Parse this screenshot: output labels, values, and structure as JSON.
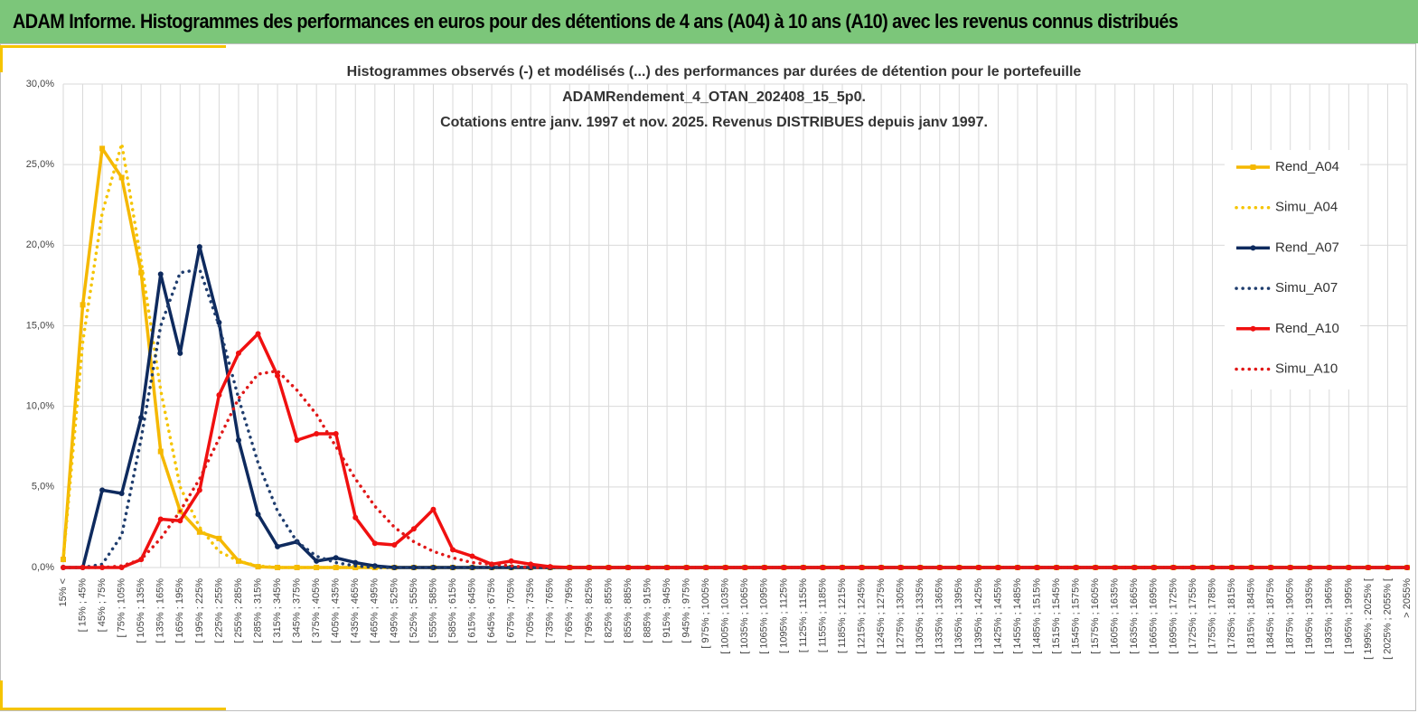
{
  "header": {
    "title": "ADAM Informe. Histogrammes des performances en euros pour des détentions de 4 ans (A04) à 10 ans (A10) avec les revenus connus distribués"
  },
  "chart_data": {
    "type": "line",
    "title": [
      "Histogrammes observés (-) et modélisés (...) des performances par durées de détention pour le portefeuille",
      "ADAMRendement_4_OTAN_202408_15_5p0.",
      "Cotations entre janv. 1997 et nov. 2025. Revenus DISTRIBUES depuis janv 1997."
    ],
    "categories": [
      "15% <",
      "[ 15% ; 45%",
      "[ 45% ; 75%",
      "[ 75% ; 105%",
      "[ 105% ; 135%",
      "[ 135% ; 165%",
      "[ 165% ; 195%",
      "[ 195% ; 225%",
      "[ 225% ; 255%",
      "[ 255% ; 285%",
      "[ 285% ; 315%",
      "[ 315% ; 345%",
      "[ 345% ; 375%",
      "[ 375% ; 405%",
      "[ 405% ; 435%",
      "[ 435% ; 465%",
      "[ 465% ; 495%",
      "[ 495% ; 525%",
      "[ 525% ; 555%",
      "[ 555% ; 585%",
      "[ 585% ; 615%",
      "[ 615% ; 645%",
      "[ 645% ; 675%",
      "[ 675% ; 705%",
      "[ 705% ; 735%",
      "[ 735% ; 765%",
      "[ 765% ; 795%",
      "[ 795% ; 825%",
      "[ 825% ; 855%",
      "[ 855% ; 885%",
      "[ 885% ; 915%",
      "[ 915% ; 945%",
      "[ 945% ; 975%",
      "[ 975% ; 1005%",
      "[ 1005% ; 1035%",
      "[ 1035% ; 1065%",
      "[ 1065% ; 1095%",
      "[ 1095% ; 1125%",
      "[ 1125% ; 1155%",
      "[ 1155% ; 1185%",
      "[ 1185% ; 1215%",
      "[ 1215% ; 1245%",
      "[ 1245% ; 1275%",
      "[ 1275% ; 1305%",
      "[ 1305% ; 1335%",
      "[ 1335% ; 1365%",
      "[ 1365% ; 1395%",
      "[ 1395% ; 1425%",
      "[ 1425% ; 1455%",
      "[ 1455% ; 1485%",
      "[ 1485% ; 1515%",
      "[ 1515% ; 1545%",
      "[ 1545% ; 1575%",
      "[ 1575% ; 1605%",
      "[ 1605% ; 1635%",
      "[ 1635% ; 1665%",
      "[ 1665% ; 1695%",
      "[ 1695% ; 1725%",
      "[ 1725% ; 1755%",
      "[ 1755% ; 1785%",
      "[ 1785% ; 1815%",
      "[ 1815% ; 1845%",
      "[ 1845% ; 1875%",
      "[ 1875% ; 1905%",
      "[ 1905% ; 1935%",
      "[ 1935% ; 1965%",
      "[ 1965% ; 1995%",
      "[ 1995% ; 2025% [",
      "[ 2025% ; 2055% [",
      "> 2055%"
    ],
    "series": [
      {
        "name": "Rend_A04",
        "color": "#f5b800",
        "dash": false,
        "marker": "square",
        "values": [
          0.5,
          16.3,
          26.0,
          24.2,
          18.3,
          7.2,
          3.5,
          2.2,
          1.8,
          0.4,
          0.05,
          0,
          0,
          0,
          0,
          0,
          0,
          0,
          0,
          0,
          0,
          0,
          0,
          0,
          0,
          0,
          0,
          0,
          0,
          0,
          0,
          0,
          0,
          0,
          0,
          0,
          0,
          0,
          0,
          0,
          0,
          0,
          0,
          0,
          0,
          0,
          0,
          0,
          0,
          0,
          0,
          0,
          0,
          0,
          0,
          0,
          0,
          0,
          0,
          0,
          0,
          0,
          0,
          0,
          0,
          0,
          0,
          0,
          0,
          0
        ]
      },
      {
        "name": "Simu_A04",
        "color": "#f5c400",
        "dash": true,
        "marker": "none",
        "values": [
          0.5,
          14,
          22,
          26.3,
          19,
          11,
          5,
          2.5,
          1.0,
          0.4,
          0.1,
          0,
          0,
          0,
          0,
          0,
          0,
          0,
          0,
          0,
          0,
          0,
          0,
          0,
          0,
          0,
          0,
          0,
          0,
          0,
          0,
          0,
          0,
          0,
          0,
          0,
          0,
          0,
          0,
          0,
          0,
          0,
          0,
          0,
          0,
          0,
          0,
          0,
          0,
          0,
          0,
          0,
          0,
          0,
          0,
          0,
          0,
          0,
          0,
          0,
          0,
          0,
          0,
          0,
          0,
          0,
          0,
          0,
          0,
          0
        ]
      },
      {
        "name": "Rend_A07",
        "color": "#0e2a5e",
        "dash": false,
        "marker": "circle",
        "values": [
          0,
          0,
          4.8,
          4.6,
          9.3,
          18.2,
          13.3,
          19.9,
          15.2,
          7.9,
          3.3,
          1.3,
          1.6,
          0.4,
          0.6,
          0.3,
          0.1,
          0,
          0,
          0,
          0,
          0,
          0,
          0,
          0,
          0,
          0,
          0,
          0,
          0,
          0,
          0,
          0,
          0,
          0,
          0,
          0,
          0,
          0,
          0,
          0,
          0,
          0,
          0,
          0,
          0,
          0,
          0,
          0,
          0,
          0,
          0,
          0,
          0,
          0,
          0,
          0,
          0,
          0,
          0,
          0,
          0,
          0,
          0,
          0,
          0,
          0,
          0,
          0,
          0
        ]
      },
      {
        "name": "Simu_A07",
        "color": "#1f3d6e",
        "dash": true,
        "marker": "none",
        "values": [
          0,
          0,
          0.2,
          2.0,
          8.0,
          15,
          18.3,
          18.5,
          15,
          10.5,
          6.5,
          3.5,
          1.6,
          0.7,
          0.3,
          0.1,
          0,
          0,
          0,
          0,
          0,
          0,
          0,
          0,
          0,
          0,
          0,
          0,
          0,
          0,
          0,
          0,
          0,
          0,
          0,
          0,
          0,
          0,
          0,
          0,
          0,
          0,
          0,
          0,
          0,
          0,
          0,
          0,
          0,
          0,
          0,
          0,
          0,
          0,
          0,
          0,
          0,
          0,
          0,
          0,
          0,
          0,
          0,
          0,
          0,
          0,
          0,
          0,
          0,
          0
        ]
      },
      {
        "name": "Rend_A10",
        "color": "#f01010",
        "dash": false,
        "marker": "circle",
        "values": [
          0,
          0,
          0,
          0,
          0.5,
          3.0,
          2.9,
          4.8,
          10.7,
          13.3,
          14.5,
          11.9,
          7.9,
          8.3,
          8.3,
          3.1,
          1.5,
          1.4,
          2.4,
          3.6,
          1.1,
          0.7,
          0.2,
          0.4,
          0.2,
          0.05,
          0,
          0,
          0,
          0,
          0,
          0,
          0,
          0,
          0,
          0,
          0,
          0,
          0,
          0,
          0,
          0,
          0,
          0,
          0,
          0,
          0,
          0,
          0,
          0,
          0,
          0,
          0,
          0,
          0,
          0,
          0,
          0,
          0,
          0,
          0,
          0,
          0,
          0,
          0,
          0,
          0,
          0,
          0,
          0
        ]
      },
      {
        "name": "Simu_A10",
        "color": "#e01818",
        "dash": true,
        "marker": "none",
        "values": [
          0,
          0,
          0,
          0.1,
          0.5,
          1.8,
          3.5,
          5.5,
          8.0,
          10.5,
          12.0,
          12.2,
          11.0,
          9.5,
          7.5,
          5.5,
          3.8,
          2.5,
          1.6,
          1.0,
          0.6,
          0.3,
          0.2,
          0.1,
          0,
          0,
          0,
          0,
          0,
          0,
          0,
          0,
          0,
          0,
          0,
          0,
          0,
          0,
          0,
          0,
          0,
          0,
          0,
          0,
          0,
          0,
          0,
          0,
          0,
          0,
          0,
          0,
          0,
          0,
          0,
          0,
          0,
          0,
          0,
          0,
          0,
          0,
          0,
          0,
          0,
          0,
          0,
          0,
          0,
          0
        ]
      }
    ],
    "ylim": [
      0,
      30
    ],
    "yticks": [
      {
        "value": 0,
        "label": "0,0%"
      },
      {
        "value": 5,
        "label": "5,0%"
      },
      {
        "value": 10,
        "label": "10,0%"
      },
      {
        "value": 15,
        "label": "15,0%"
      },
      {
        "value": 20,
        "label": "20,0%"
      },
      {
        "value": 25,
        "label": "25,0%"
      },
      {
        "value": 30,
        "label": "30,0%"
      }
    ],
    "grid": true,
    "legend": "right"
  }
}
